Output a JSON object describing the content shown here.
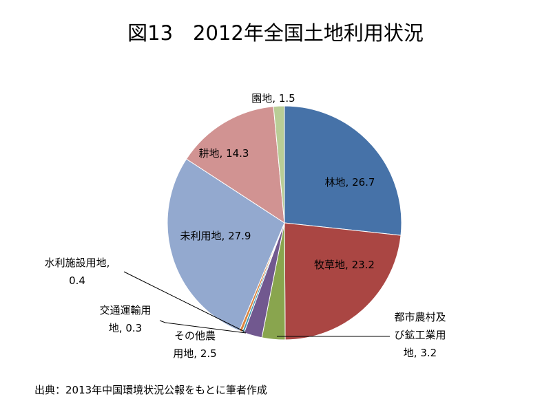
{
  "chart_data": {
    "type": "pie",
    "title": "図13　2012年全国土地利用状況",
    "start_angle_deg": 0,
    "direction": "clockwise",
    "slices": [
      {
        "label": "林地",
        "value": 26.7,
        "color": "#4672A8",
        "label_text": "林地, 26.7"
      },
      {
        "label": "牧草地",
        "value": 23.2,
        "color": "#AA4643",
        "label_text": "牧草地, 23.2"
      },
      {
        "label": "都市農村及び鉱工業用地",
        "value": 3.2,
        "color": "#89A54E",
        "label_lines": [
          "都市農村及",
          "び鉱工業用",
          "地, 3.2"
        ]
      },
      {
        "label": "その他農用地",
        "value": 2.5,
        "color": "#71588F",
        "label_lines": [
          "その他農",
          "用地, 2.5"
        ]
      },
      {
        "label": "交通運輸用地",
        "value": 0.3,
        "color": "#4198AF",
        "label_lines": [
          "交通運輸用",
          "地, 0.3"
        ]
      },
      {
        "label": "水利施設用地",
        "value": 0.4,
        "color": "#DB843D",
        "label_lines": [
          "水利施設用地,",
          "0.4"
        ]
      },
      {
        "label": "未利用地",
        "value": 27.9,
        "color": "#93A9CF",
        "label_text": "未利用地, 27.9"
      },
      {
        "label": "耕地",
        "value": 14.3,
        "color": "#D19392",
        "label_text": "耕地, 14.3"
      },
      {
        "label": "園地",
        "value": 1.5,
        "color": "#B9CD96",
        "label_text": "園地, 1.5"
      }
    ]
  },
  "footer": {
    "source": "出典：2013年中国環境状況公報をもとに筆者作成"
  }
}
